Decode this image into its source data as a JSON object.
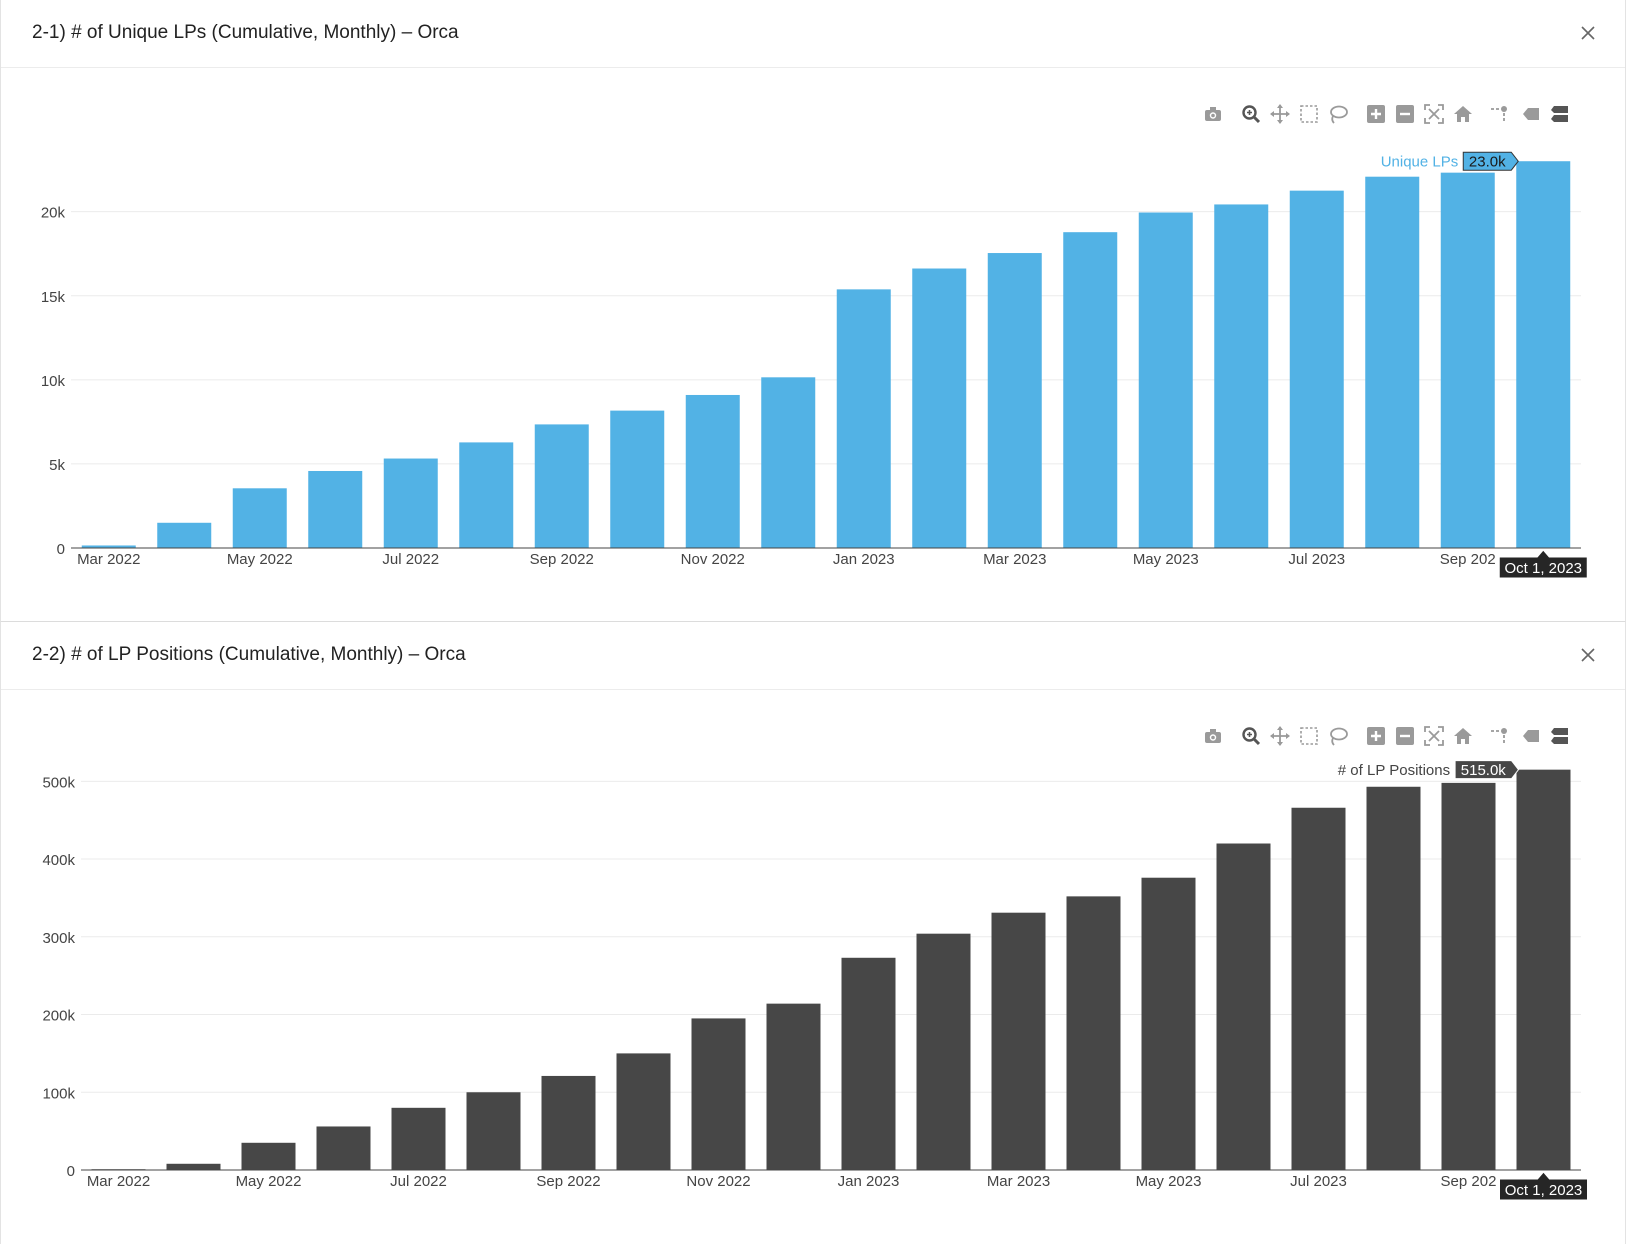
{
  "panels": [
    {
      "title": "2-1) # of Unique LPs (Cumulative, Monthly) – Orca",
      "close_icon": "close-icon"
    },
    {
      "title": "2-2) # of LP Positions (Cumulative, Monthly) – Orca",
      "close_icon": "close-icon"
    }
  ],
  "modebar": [
    {
      "name": "camera-icon",
      "label": "Download plot as a png"
    },
    {
      "name": "zoom-icon",
      "label": "Zoom"
    },
    {
      "name": "pan-icon",
      "label": "Pan"
    },
    {
      "name": "box-select-icon",
      "label": "Box Select"
    },
    {
      "name": "lasso-select-icon",
      "label": "Lasso Select"
    },
    {
      "name": "zoom-in-icon",
      "label": "Zoom in"
    },
    {
      "name": "zoom-out-icon",
      "label": "Zoom out"
    },
    {
      "name": "autoscale-icon",
      "label": "Autoscale"
    },
    {
      "name": "reset-axes-icon",
      "label": "Reset axes"
    },
    {
      "name": "spike-lines-icon",
      "label": "Toggle Spike Lines"
    },
    {
      "name": "hover-closest-icon",
      "label": "Show closest data on hover"
    },
    {
      "name": "hover-compare-icon",
      "label": "Compare data on hover"
    }
  ],
  "colors": {
    "series1": "#52b2e5",
    "series2": "#474747",
    "grid": "#ebebeb",
    "axis": "#444444",
    "icon": "#9a9a9a",
    "icon_active": "#555555"
  },
  "chart_data": [
    {
      "type": "bar",
      "series_name": "Unique LPs",
      "categories": [
        "Mar 2022",
        "Apr 2022",
        "May 2022",
        "Jun 2022",
        "Jul 2022",
        "Aug 2022",
        "Sep 2022",
        "Oct 2022",
        "Nov 2022",
        "Dec 2022",
        "Jan 2023",
        "Feb 2023",
        "Mar 2023",
        "Apr 2023",
        "May 2023",
        "Jun 2023",
        "Jul 2023",
        "Aug 2023",
        "Sep 2023",
        "Oct 2023"
      ],
      "values": [
        150,
        1500,
        3550,
        4580,
        5320,
        6280,
        7350,
        8170,
        9100,
        10150,
        15380,
        16620,
        17540,
        18780,
        19950,
        20430,
        21250,
        22080,
        22320,
        23000
      ],
      "x_tick_labels": [
        "Mar 2022",
        "May 2022",
        "Jul 2022",
        "Sep 2022",
        "Nov 2022",
        "Jan 2023",
        "Mar 2023",
        "May 2023",
        "Jul 2023",
        "Sep 202"
      ],
      "y_ticks": [
        0,
        5000,
        10000,
        15000,
        20000
      ],
      "y_tick_labels": [
        "0",
        "5k",
        "10k",
        "15k",
        "20k"
      ],
      "ylim": [
        0,
        24500
      ],
      "hover_label": "Unique LPs",
      "hover_value": "23.0k",
      "hover_x": "Oct 1, 2023",
      "xlabel": "",
      "ylabel": ""
    },
    {
      "type": "bar",
      "series_name": "# of LP Positions",
      "categories": [
        "Mar 2022",
        "Apr 2022",
        "May 2022",
        "Jun 2022",
        "Jul 2022",
        "Aug 2022",
        "Sep 2022",
        "Oct 2022",
        "Nov 2022",
        "Dec 2022",
        "Jan 2023",
        "Feb 2023",
        "Mar 2023",
        "Apr 2023",
        "May 2023",
        "Jun 2023",
        "Jul 2023",
        "Aug 2023",
        "Sep 2023",
        "Oct 2023"
      ],
      "values": [
        1000,
        8000,
        35000,
        56000,
        80000,
        100000,
        121000,
        150000,
        195000,
        214000,
        273000,
        304000,
        331000,
        352000,
        376000,
        420000,
        466000,
        493000,
        498000,
        515000
      ],
      "x_tick_labels": [
        "Mar 2022",
        "May 2022",
        "Jul 2022",
        "Sep 2022",
        "Nov 2022",
        "Jan 2023",
        "Mar 2023",
        "May 2023",
        "Jul 2023",
        "Sep 202"
      ],
      "y_ticks": [
        0,
        100000,
        200000,
        300000,
        400000,
        500000
      ],
      "y_tick_labels": [
        "0",
        "100k",
        "200k",
        "300k",
        "400k",
        "500k"
      ],
      "ylim": [
        0,
        530000
      ],
      "hover_label": "# of LP Positions",
      "hover_value": "515.0k",
      "hover_x": "Oct 1, 2023",
      "xlabel": "",
      "ylabel": ""
    }
  ]
}
